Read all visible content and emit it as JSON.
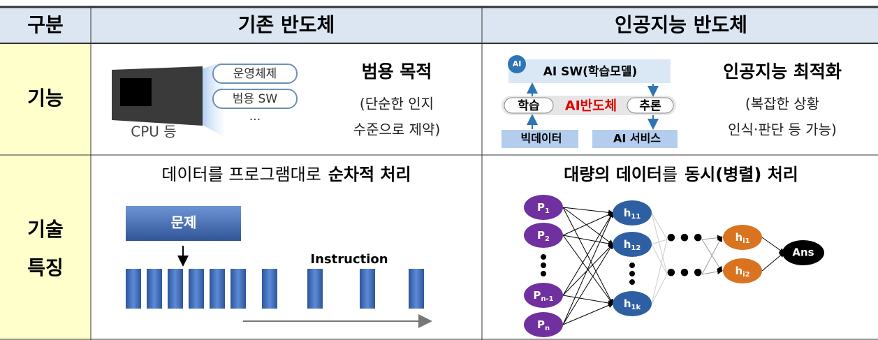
{
  "header": {
    "col0": "구분",
    "col1": "기존 반도체",
    "col2": "인공지능 반도체"
  },
  "function": {
    "label": "기능",
    "conventional": {
      "cpu_label": "CPU 등",
      "pills": [
        "운영체제",
        "범용 SW"
      ],
      "ellipsis": "···",
      "title": "범용 목적",
      "desc": [
        "(단순한 인지",
        "수준으로 제약)"
      ]
    },
    "ai": {
      "top": "AI SW(학습모델)",
      "icon": "AI",
      "left": "학습",
      "center": "AI반도체",
      "right": "추론",
      "bottom_left": "빅데이터",
      "bottom_right": "AI 서비스",
      "title": "인공지능 최적화",
      "desc": [
        "(복잡한 상황",
        "인식·판단 등 가능)"
      ]
    }
  },
  "feature": {
    "label": [
      "기술",
      "특징"
    ],
    "conventional": {
      "heading": [
        "데이터를 프로그램대로",
        "순차적 처리"
      ],
      "problem": "문제",
      "instruction": "Instruction"
    },
    "ai": {
      "heading": [
        "대량의 데이터",
        "를",
        "동시(병렬) 처리"
      ],
      "inputs": [
        {
          "base": "P",
          "sub": "1"
        },
        {
          "base": "P",
          "sub": "2"
        },
        {
          "base": "P",
          "sub": "n-1"
        },
        {
          "base": "P",
          "sub": "n"
        }
      ],
      "hidden": [
        {
          "base": "h",
          "sub": "11"
        },
        {
          "base": "h",
          "sub": "12"
        },
        {
          "base": "h",
          "sub": "1k"
        }
      ],
      "last": [
        {
          "base": "h",
          "sub": "i1"
        },
        {
          "base": "h",
          "sub": "i2"
        }
      ],
      "output": "Ans"
    }
  }
}
